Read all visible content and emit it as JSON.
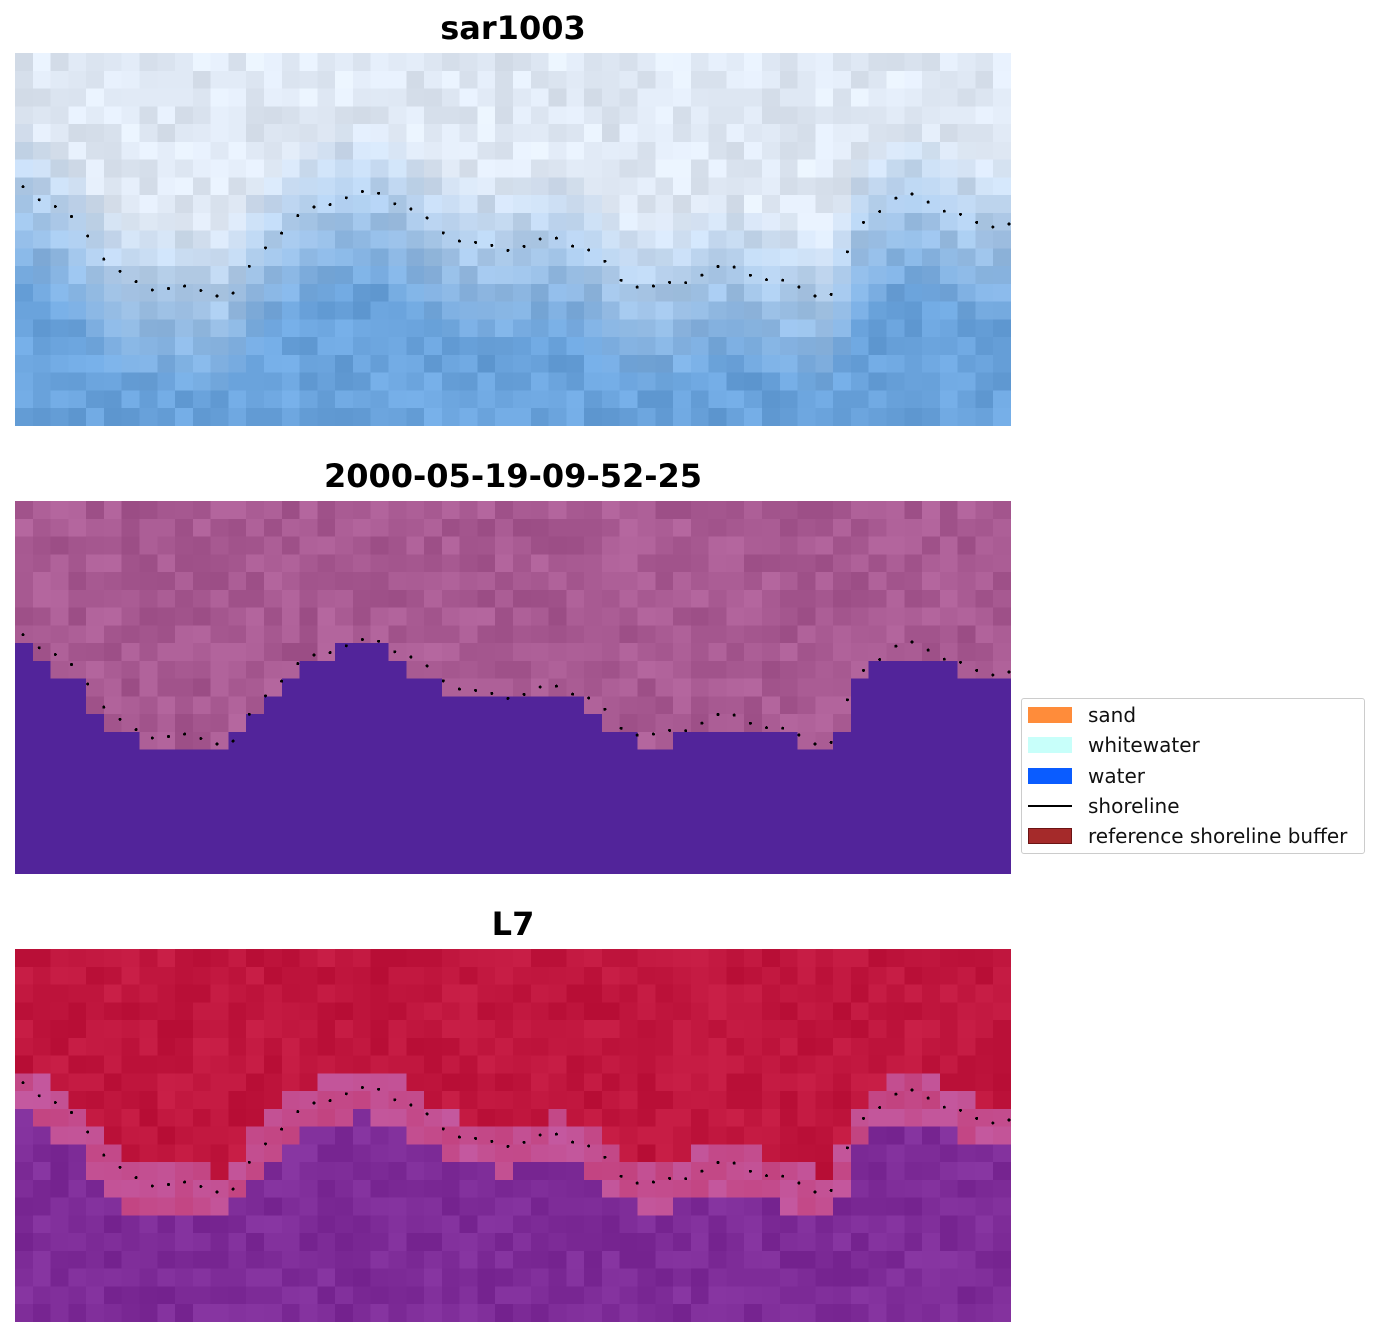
{
  "panels": [
    {
      "id": "rgb",
      "title": "sar1003",
      "style": "rgb"
    },
    {
      "id": "classified",
      "title": "2000-05-19-09-52-25",
      "style": "classified"
    },
    {
      "id": "index",
      "title": "L7",
      "style": "index"
    }
  ],
  "legend": {
    "items": [
      {
        "label": "sand",
        "color": "#ff8c3a",
        "kind": "patch"
      },
      {
        "label": "whitewater",
        "color": "#c8fffa",
        "kind": "patch"
      },
      {
        "label": "water",
        "color": "#0a5cff",
        "kind": "patch"
      },
      {
        "label": "shoreline",
        "color": "#000000",
        "kind": "line"
      },
      {
        "label": "reference shoreline buffer",
        "color": "#a52a2a",
        "kind": "patch"
      }
    ]
  },
  "colors": {
    "rgb_water": "#6aa3dc",
    "rgb_foam": "#dfe8f4",
    "classified_land": "#a85a92",
    "classified_water": "#52249a",
    "index_land": "#c0163e",
    "index_water": "#7e2c98"
  },
  "shoreline_profile": [
    0.38,
    0.43,
    0.49,
    0.6,
    0.65,
    0.65,
    0.66,
    0.67,
    0.55,
    0.47,
    0.43,
    0.4,
    0.4,
    0.44,
    0.5,
    0.53,
    0.55,
    0.53,
    0.52,
    0.55,
    0.63,
    0.65,
    0.64,
    0.6,
    0.6,
    0.63,
    0.65,
    0.68,
    0.48,
    0.42,
    0.4,
    0.45,
    0.48,
    0.48
  ]
}
